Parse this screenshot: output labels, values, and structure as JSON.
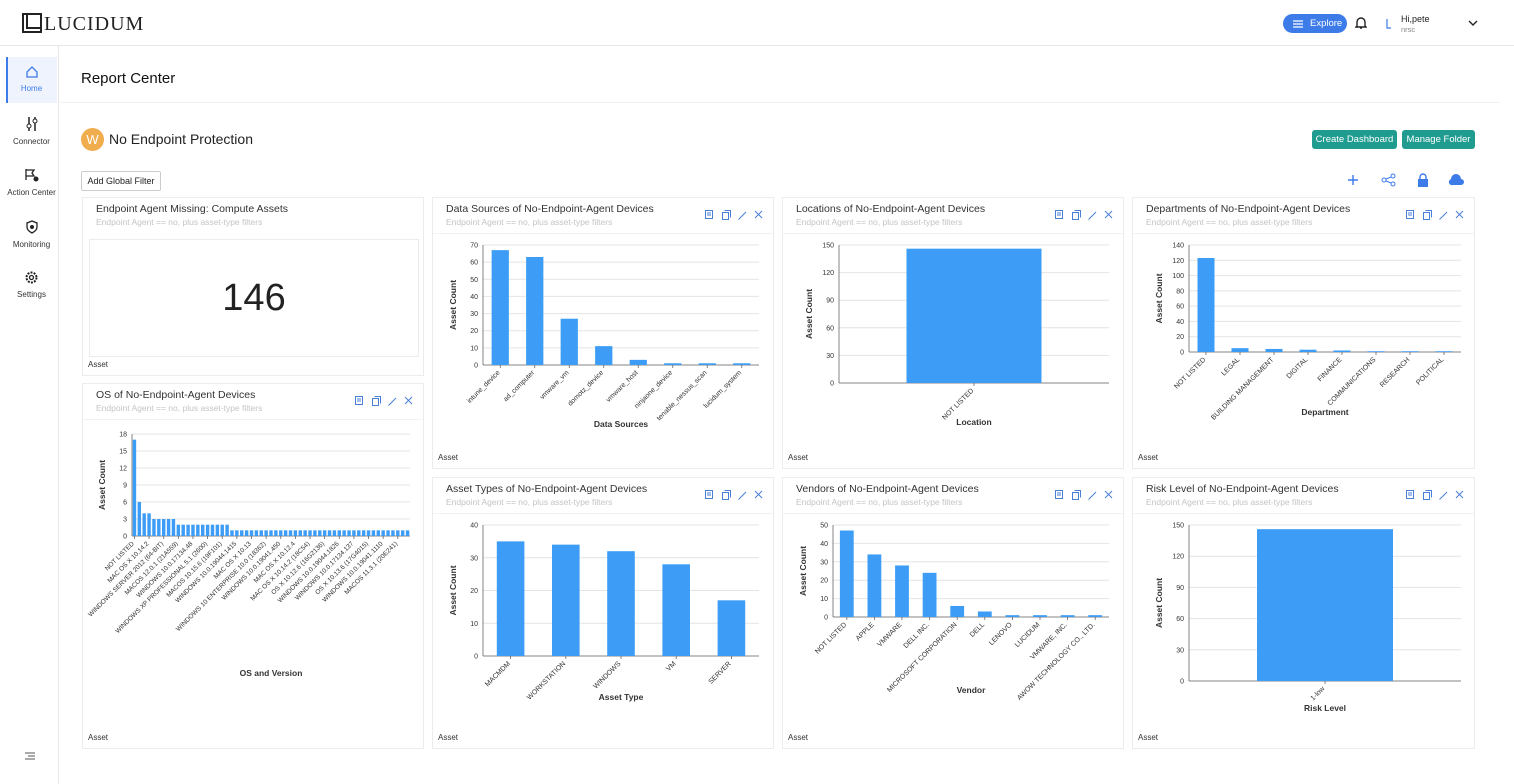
{
  "header": {
    "logo": "LUCIDUM",
    "explore": "Explore",
    "greeting": "Hi,pete",
    "org": "nrsc"
  },
  "nav": [
    "Home",
    "Connector",
    "Action Center",
    "Monitoring",
    "Settings"
  ],
  "page_title": "Report Center",
  "dashboard": {
    "avatar": "W",
    "name": "No Endpoint Protection",
    "buttons": [
      "Create Dashboard",
      "Manage Folder"
    ],
    "filter_button": "Add Global Filter"
  },
  "kpi": {
    "title": "Endpoint Agent Missing: Compute Assets",
    "subtitle": "Endpoint Agent == no, plus asset-type filters",
    "value": 146,
    "footer": "Asset"
  },
  "chart_data": [
    {
      "type": "bar",
      "title": "OS of No-Endpoint-Agent Devices",
      "subtitle": "Endpoint Agent == no, plus asset-type filters",
      "footer": "Asset",
      "x_label": "OS and Version",
      "y_label": "Asset Count",
      "color": "#3d9cf5",
      "grid": true,
      "ylim": [
        0,
        18
      ],
      "yticks": [
        0,
        3,
        6,
        9,
        12,
        15,
        18
      ],
      "categories": [
        "NOT LISTED",
        null,
        null,
        "MAC OS X 10.14.2",
        null,
        null,
        "WINDOWS SERVER 2012 (64-BIT)",
        null,
        null,
        "MACOS 12.0.1 (21A559)",
        null,
        null,
        "WINDOWS 10.0.17134.48",
        null,
        null,
        "WINDOWS XP PROFESSIONAL 5.1 (2600)",
        null,
        null,
        "MACOS 10.15.6 (19F101)",
        null,
        null,
        "WINDOWS 10.0.19044.1415",
        null,
        null,
        "MAC OS X 10.13",
        null,
        null,
        "WINDOWS 10 ENTERPRISE 10.0 (18362)",
        null,
        null,
        "WINDOWS 10.0.19041.450",
        null,
        null,
        "MAC OS X 10.12.4",
        null,
        null,
        "MAC OS X 10.14.2 (18C54)",
        null,
        null,
        "OS X 10.12.6 (16G2136)",
        null,
        null,
        "WINDOWS 10.0.19044.1826",
        null,
        null,
        "WINDOWS 10.0.17134.137",
        null,
        null,
        "OS X 10.13.6 (17G4015)",
        null,
        null,
        "WINDOWS 10.0.19041.1110",
        null,
        null,
        "MACOS 11.3.1 (20E241)",
        null,
        null
      ],
      "values": [
        17,
        6,
        4,
        4,
        3,
        3,
        3,
        3,
        3,
        2,
        2,
        2,
        2,
        2,
        2,
        2,
        2,
        2,
        2,
        2,
        1,
        1,
        1,
        1,
        1,
        1,
        1,
        1,
        1,
        1,
        1,
        1,
        1,
        1,
        1,
        1,
        1,
        1,
        1,
        1,
        1,
        1,
        1,
        1,
        1,
        1,
        1,
        1,
        1,
        1,
        1,
        1,
        1,
        1,
        1,
        1,
        1
      ]
    },
    {
      "type": "bar",
      "title": "Data Sources of No-Endpoint-Agent Devices",
      "subtitle": "Endpoint Agent == no, plus asset-type filters",
      "footer": "Asset",
      "x_label": "Data Sources",
      "y_label": "Asset Count",
      "color": "#3d9cf5",
      "grid": true,
      "ylim": [
        0,
        70
      ],
      "yticks": [
        0,
        10,
        20,
        30,
        40,
        50,
        60,
        70
      ],
      "categories": [
        "intune_device",
        "ad_computer",
        "vmware_vm",
        "domotz_device",
        "vmware_host",
        "ninjaone_device",
        "tenable_nessus_scan",
        "lucidum_system"
      ],
      "values": [
        67,
        63,
        27,
        11,
        3,
        1,
        1,
        1
      ]
    },
    {
      "type": "bar",
      "title": "Locations of No-Endpoint-Agent Devices",
      "subtitle": "Endpoint Agent == no, plus asset-type filters",
      "footer": "Asset",
      "x_label": "Location",
      "y_label": "Asset Count",
      "color": "#3d9cf5",
      "grid": true,
      "ylim": [
        0,
        150
      ],
      "yticks": [
        0,
        30,
        60,
        90,
        120,
        150
      ],
      "categories": [
        "NOT LISTED"
      ],
      "values": [
        146
      ]
    },
    {
      "type": "bar",
      "title": "Departments of No-Endpoint-Agent Devices",
      "subtitle": "Endpoint Agent == no, plus asset-type filters",
      "footer": "Asset",
      "x_label": "Department",
      "y_label": "Asset Count",
      "color": "#3d9cf5",
      "grid": true,
      "ylim": [
        0,
        140
      ],
      "yticks": [
        0,
        20,
        40,
        60,
        80,
        100,
        120,
        140
      ],
      "categories": [
        "NOT LISTED",
        "LEGAL",
        "BUILDING MANAGEMENT",
        "DIGITAL",
        "FINANCE",
        "COMMUNICATIONS",
        "RESEARCH",
        "POLITICAL"
      ],
      "values": [
        123,
        5,
        4,
        3,
        2,
        1,
        1,
        1
      ]
    },
    {
      "type": "bar",
      "title": "Asset Types of No-Endpoint-Agent Devices",
      "subtitle": "Endpoint Agent == no, plus asset-type filters",
      "footer": "Asset",
      "x_label": "Asset Type",
      "y_label": "Asset Count",
      "color": "#3d9cf5",
      "grid": true,
      "ylim": [
        0,
        40
      ],
      "yticks": [
        0,
        10,
        20,
        30,
        40
      ],
      "categories": [
        "MACMDM",
        "WORKSTATION",
        "WINDOWS",
        "VM",
        "SERVER"
      ],
      "values": [
        35,
        34,
        32,
        28,
        17
      ]
    },
    {
      "type": "bar",
      "title": "Vendors of No-Endpoint-Agent Devices",
      "subtitle": "Endpoint Agent == no, plus asset-type filters",
      "footer": "Asset",
      "x_label": "Vendor",
      "y_label": "Asset Count",
      "color": "#3d9cf5",
      "grid": true,
      "ylim": [
        0,
        50
      ],
      "yticks": [
        0,
        10,
        20,
        30,
        40,
        50
      ],
      "categories": [
        "NOT LISTED",
        "APPLE",
        "VMWARE",
        "DELL INC.",
        "MICROSOFT CORPORATION",
        "DELL",
        "LENOVO",
        "LUCIDUM",
        "VMWARE, INC.",
        "AWOW TECHNOLOGY CO., LTD."
      ],
      "values": [
        47,
        34,
        28,
        24,
        6,
        3,
        1,
        1,
        1,
        1
      ]
    },
    {
      "type": "bar",
      "title": "Risk Level of No-Endpoint-Agent Devices",
      "subtitle": "Endpoint Agent == no, plus asset-type filters",
      "footer": "Asset",
      "x_label": "Risk Level",
      "y_label": "Asset Count",
      "color": "#3d9cf5",
      "grid": true,
      "ylim": [
        0,
        150
      ],
      "yticks": [
        0,
        30,
        60,
        90,
        120,
        150
      ],
      "categories": [
        "1-low"
      ],
      "values": [
        146
      ]
    }
  ]
}
